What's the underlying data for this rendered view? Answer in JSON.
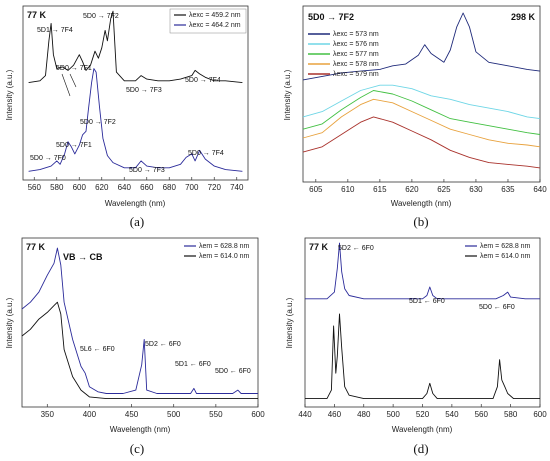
{
  "chart_data": [
    {
      "type": "line",
      "panel_label": "(a)",
      "temperature_label": "77 K",
      "xlabel": "Wavelength (nm)",
      "ylabel": "Intensity (a.u.)",
      "xlim": [
        550,
        750
      ],
      "x_ticks": [
        "560",
        "580",
        "600",
        "620",
        "640",
        "660",
        "680",
        "700",
        "720",
        "740"
      ],
      "legend": [
        {
          "label": "λexc = 459.2 nm",
          "color": "#111111"
        },
        {
          "label": "λexc = 464.2 nm",
          "color": "#2b2b9a"
        }
      ],
      "annotations": [
        {
          "text": "5D1 → 7F4"
        },
        {
          "text": "5D0 → 7F1"
        },
        {
          "text": "5D0 → 7F2"
        },
        {
          "text": "5D0 → 7F3"
        },
        {
          "text": "5D0 → 7F4"
        },
        {
          "text": "5D0 → 7F0"
        },
        {
          "text": "5D0 → 7F1"
        },
        {
          "text": "5D0 → 7F2"
        },
        {
          "text": "5D0 → 7F3"
        },
        {
          "text": "5D0 → 7F4"
        }
      ],
      "series": [
        {
          "name": "λexc = 459.2 nm",
          "color": "#111111",
          "x": [
            555,
            565,
            570,
            573,
            575,
            577,
            580,
            585,
            590,
            595,
            600,
            603,
            606,
            610,
            614,
            617,
            620,
            623,
            625,
            628,
            630,
            633,
            640,
            650,
            655,
            660,
            670,
            680,
            690,
            700,
            703,
            707,
            712,
            720,
            730,
            745
          ],
          "y": [
            0.56,
            0.57,
            0.6,
            0.8,
            0.9,
            0.72,
            0.64,
            0.65,
            0.63,
            0.66,
            0.72,
            0.68,
            0.63,
            0.66,
            0.74,
            0.7,
            0.76,
            0.86,
            0.8,
            0.93,
            0.97,
            0.62,
            0.57,
            0.57,
            0.6,
            0.58,
            0.57,
            0.57,
            0.58,
            0.6,
            0.63,
            0.61,
            0.59,
            0.57,
            0.57,
            0.56
          ]
        },
        {
          "name": "λexc = 464.2 nm",
          "color": "#2b2b9a",
          "x": [
            555,
            565,
            575,
            580,
            583,
            587,
            590,
            593,
            596,
            600,
            603,
            606,
            608,
            611,
            613,
            615,
            618,
            621,
            625,
            630,
            640,
            650,
            655,
            660,
            670,
            680,
            690,
            695,
            700,
            703,
            707,
            712,
            720,
            730,
            745
          ],
          "y": [
            0.05,
            0.06,
            0.08,
            0.11,
            0.09,
            0.15,
            0.22,
            0.19,
            0.15,
            0.2,
            0.26,
            0.28,
            0.4,
            0.56,
            0.64,
            0.62,
            0.42,
            0.24,
            0.14,
            0.1,
            0.07,
            0.07,
            0.11,
            0.08,
            0.07,
            0.07,
            0.09,
            0.13,
            0.15,
            0.11,
            0.17,
            0.12,
            0.08,
            0.06,
            0.05
          ]
        }
      ]
    },
    {
      "type": "line",
      "panel_label": "(b)",
      "temperature_label": "298 K",
      "title": "5D0 → 7F2",
      "xlabel": "Wavelength (nm)",
      "ylabel": "Intensity (a.u.)",
      "xlim": [
        603,
        640
      ],
      "x_ticks": [
        "605",
        "610",
        "615",
        "620",
        "625",
        "630",
        "635",
        "640"
      ],
      "series": [
        {
          "name": "λexc = 573 nm",
          "color": "#1f2a7a",
          "x": [
            603,
            606,
            609,
            612,
            615,
            617,
            619,
            621,
            622,
            623,
            625,
            626,
            627,
            628,
            629,
            630,
            632,
            635,
            638,
            640
          ],
          "y": [
            0.58,
            0.6,
            0.62,
            0.63,
            0.64,
            0.66,
            0.67,
            0.72,
            0.78,
            0.73,
            0.68,
            0.75,
            0.88,
            0.96,
            0.88,
            0.74,
            0.68,
            0.66,
            0.64,
            0.63
          ]
        },
        {
          "name": "λexc = 576 nm",
          "color": "#6fd6e6",
          "x": [
            603,
            606,
            609,
            612,
            615,
            617,
            620,
            623,
            626,
            629,
            632,
            635,
            638,
            640
          ],
          "y": [
            0.37,
            0.4,
            0.46,
            0.52,
            0.55,
            0.55,
            0.53,
            0.49,
            0.47,
            0.44,
            0.42,
            0.4,
            0.37,
            0.36
          ]
        },
        {
          "name": "λexc = 577 nm",
          "color": "#43c043",
          "x": [
            603,
            606,
            609,
            612,
            614,
            617,
            620,
            623,
            626,
            629,
            632,
            635,
            638,
            640
          ],
          "y": [
            0.3,
            0.33,
            0.41,
            0.48,
            0.52,
            0.5,
            0.46,
            0.41,
            0.36,
            0.34,
            0.32,
            0.3,
            0.28,
            0.27
          ]
        },
        {
          "name": "λexc = 578 nm",
          "color": "#e8a23e",
          "x": [
            603,
            606,
            609,
            612,
            614,
            617,
            620,
            623,
            626,
            629,
            632,
            635,
            638,
            640
          ],
          "y": [
            0.25,
            0.28,
            0.37,
            0.44,
            0.47,
            0.45,
            0.4,
            0.35,
            0.3,
            0.27,
            0.24,
            0.22,
            0.21,
            0.2
          ]
        },
        {
          "name": "λexc = 579 nm",
          "color": "#a9322c",
          "x": [
            603,
            606,
            609,
            612,
            614,
            617,
            620,
            623,
            626,
            629,
            632,
            635,
            638,
            640
          ],
          "y": [
            0.17,
            0.2,
            0.27,
            0.34,
            0.37,
            0.34,
            0.29,
            0.24,
            0.18,
            0.14,
            0.11,
            0.1,
            0.09,
            0.08
          ]
        }
      ]
    },
    {
      "type": "line",
      "panel_label": "(c)",
      "temperature_label": "77 K",
      "xlabel": "Wavelength (nm)",
      "ylabel": "Intensity (a.u.)",
      "xlim": [
        320,
        600
      ],
      "x_ticks": [
        "350",
        "400",
        "450",
        "500",
        "550",
        "600"
      ],
      "annotations": [
        {
          "text": "VB → CB"
        },
        {
          "text": "5L6 ← 6F0"
        },
        {
          "text": "5D2 ← 6F0"
        },
        {
          "text": "5D1 ← 6F0"
        },
        {
          "text": "5D0 ← 6F0"
        }
      ],
      "series": [
        {
          "name": "λem = 628.8 nm",
          "color": "#2b2b9a",
          "x": [
            320,
            330,
            340,
            350,
            358,
            362,
            366,
            370,
            380,
            390,
            395,
            400,
            410,
            420,
            430,
            440,
            455,
            462,
            465,
            468,
            480,
            500,
            520,
            524,
            527,
            540,
            560,
            570,
            576,
            580,
            600
          ],
          "y": [
            0.58,
            0.62,
            0.68,
            0.78,
            0.85,
            0.94,
            0.84,
            0.62,
            0.4,
            0.24,
            0.2,
            0.12,
            0.09,
            0.08,
            0.08,
            0.08,
            0.1,
            0.25,
            0.4,
            0.1,
            0.08,
            0.08,
            0.08,
            0.11,
            0.08,
            0.08,
            0.08,
            0.08,
            0.1,
            0.08,
            0.08
          ]
        },
        {
          "name": "λem = 614.0 nm",
          "color": "#111111",
          "x": [
            320,
            330,
            340,
            350,
            358,
            362,
            366,
            370,
            380,
            390,
            400,
            420,
            440,
            460,
            480,
            500,
            520,
            540,
            560,
            580,
            600
          ],
          "y": [
            0.42,
            0.46,
            0.52,
            0.56,
            0.6,
            0.62,
            0.55,
            0.34,
            0.18,
            0.1,
            0.06,
            0.05,
            0.05,
            0.05,
            0.05,
            0.05,
            0.05,
            0.05,
            0.05,
            0.05,
            0.05
          ]
        }
      ]
    },
    {
      "type": "line",
      "panel_label": "(d)",
      "temperature_label": "77 K",
      "xlabel": "Wavelength (nm)",
      "ylabel": "Intensity (a.u.)",
      "xlim": [
        440,
        600
      ],
      "x_ticks": [
        "440",
        "460",
        "480",
        "500",
        "520",
        "540",
        "560",
        "580",
        "600"
      ],
      "annotations": [
        {
          "text": "5D2 ← 6F0"
        },
        {
          "text": "5D1 ← 6F0"
        },
        {
          "text": "5D0 ← 6F0"
        }
      ],
      "series": [
        {
          "name": "λem = 628.8 nm",
          "color": "#2b2b9a",
          "x": [
            440,
            455,
            460,
            462,
            463.5,
            465,
            467,
            470,
            480,
            500,
            520,
            523,
            525,
            527,
            530,
            550,
            570,
            575,
            578,
            580,
            590,
            600
          ],
          "y": [
            0.64,
            0.64,
            0.68,
            0.82,
            0.97,
            0.8,
            0.7,
            0.66,
            0.64,
            0.64,
            0.64,
            0.66,
            0.71,
            0.66,
            0.64,
            0.64,
            0.64,
            0.66,
            0.68,
            0.65,
            0.64,
            0.64
          ]
        },
        {
          "name": "λem = 614.0 nm",
          "color": "#111111",
          "x": [
            440,
            455,
            458,
            459.5,
            461,
            462,
            463.5,
            465,
            467,
            470,
            480,
            500,
            520,
            523,
            525,
            527,
            530,
            550,
            568,
            571,
            572.5,
            574,
            576,
            578,
            582,
            590,
            600
          ],
          "y": [
            0.05,
            0.05,
            0.1,
            0.48,
            0.2,
            0.3,
            0.55,
            0.35,
            0.12,
            0.07,
            0.05,
            0.05,
            0.05,
            0.08,
            0.14,
            0.08,
            0.05,
            0.05,
            0.05,
            0.12,
            0.28,
            0.16,
            0.12,
            0.08,
            0.05,
            0.05,
            0.05
          ]
        }
      ]
    }
  ],
  "legend_c": [
    {
      "label": "λem = 628.8 nm",
      "color": "#2b2b9a"
    },
    {
      "label": "λem = 614.0 nm",
      "color": "#111111"
    }
  ],
  "legend_d": [
    {
      "label": "λem = 628.8 nm",
      "color": "#2b2b9a"
    },
    {
      "label": "λem = 614.0 nm",
      "color": "#111111"
    }
  ]
}
